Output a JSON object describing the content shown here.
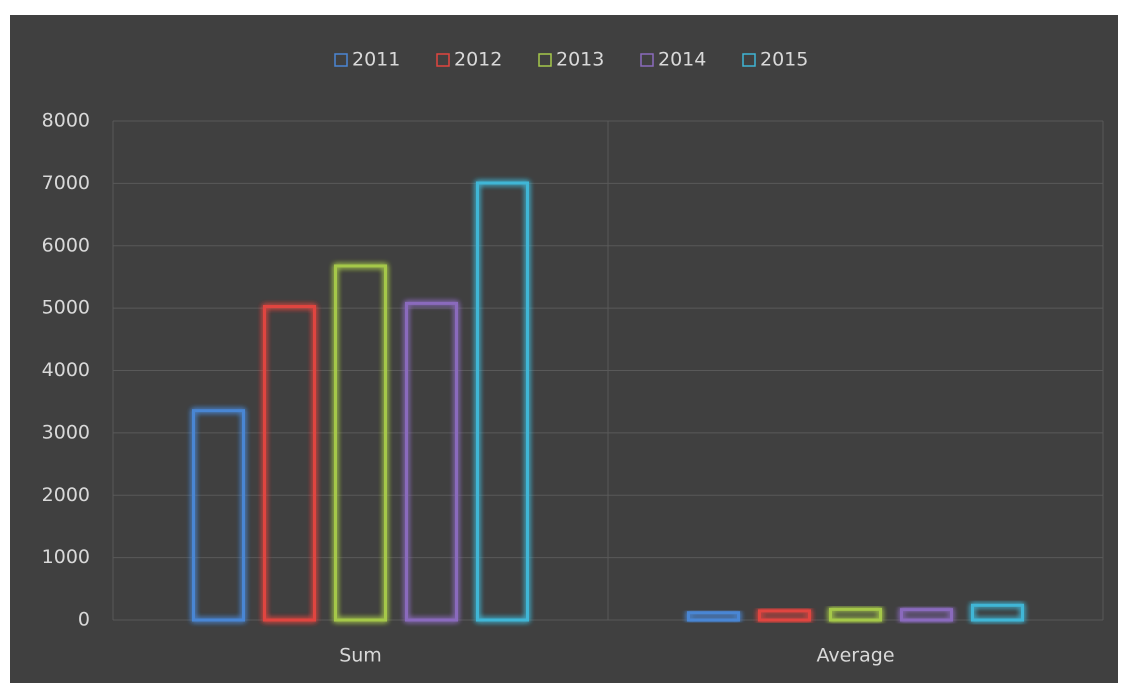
{
  "chart_data": {
    "type": "bar",
    "categories": [
      "Sum",
      "Average"
    ],
    "series": [
      {
        "name": "2011",
        "color": "#4a86d4",
        "values": [
          3380,
          140
        ]
      },
      {
        "name": "2012",
        "color": "#e0453f",
        "values": [
          5050,
          170
        ]
      },
      {
        "name": "2013",
        "color": "#a5c84a",
        "values": [
          5700,
          195
        ]
      },
      {
        "name": "2014",
        "color": "#8a6bbd",
        "values": [
          5100,
          190
        ]
      },
      {
        "name": "2015",
        "color": "#3fb6d6",
        "values": [
          7030,
          260
        ]
      }
    ],
    "ylim": [
      0,
      8000
    ],
    "yticks": [
      0,
      1000,
      2000,
      3000,
      4000,
      5000,
      6000,
      7000,
      8000
    ],
    "grid": true,
    "legend": "top"
  }
}
